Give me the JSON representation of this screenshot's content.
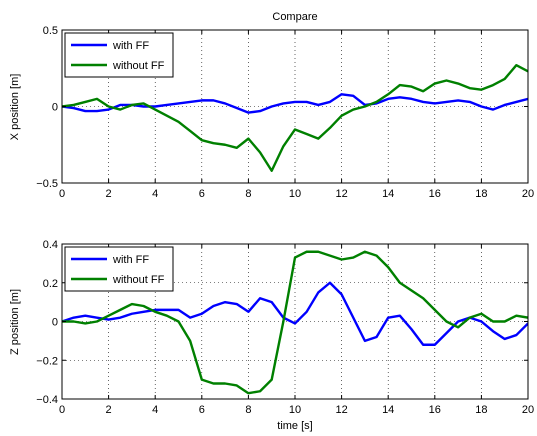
{
  "chart_data": [
    {
      "type": "line",
      "title": "Compare",
      "xlabel": "",
      "ylabel": "X position [m]",
      "xlim": [
        0,
        20
      ],
      "ylim": [
        -0.5,
        0.5
      ],
      "xticks": [
        0,
        2,
        4,
        6,
        8,
        10,
        12,
        14,
        16,
        18,
        20
      ],
      "yticks": [
        -0.5,
        0,
        0.5
      ],
      "ytick_labels": [
        "−0.5",
        "0",
        "0.5"
      ],
      "grid": true,
      "legend_position": "top-left",
      "series": [
        {
          "name": "with FF",
          "color": "#0000ff",
          "x": [
            0,
            0.5,
            1,
            1.5,
            2,
            2.5,
            3,
            3.5,
            4,
            4.5,
            5,
            5.5,
            6,
            6.5,
            7,
            7.5,
            8,
            8.5,
            9,
            9.5,
            10,
            10.5,
            11,
            11.5,
            12,
            12.5,
            13,
            13.5,
            14,
            14.5,
            15,
            15.5,
            16,
            16.5,
            17,
            17.5,
            18,
            18.5,
            19,
            19.5,
            20
          ],
          "y": [
            0,
            -0.01,
            -0.03,
            -0.03,
            -0.02,
            0.01,
            0.01,
            0.0,
            0.0,
            0.01,
            0.02,
            0.03,
            0.04,
            0.04,
            0.02,
            -0.01,
            -0.04,
            -0.03,
            0.0,
            0.02,
            0.03,
            0.03,
            0.01,
            0.03,
            0.08,
            0.07,
            0.01,
            0.02,
            0.05,
            0.06,
            0.05,
            0.03,
            0.02,
            0.03,
            0.04,
            0.03,
            0.0,
            -0.02,
            0.01,
            0.03,
            0.05
          ]
        },
        {
          "name": "without FF",
          "color": "#008000",
          "x": [
            0,
            0.5,
            1,
            1.5,
            2,
            2.5,
            3,
            3.5,
            4,
            4.5,
            5,
            5.5,
            6,
            6.5,
            7,
            7.5,
            8,
            8.5,
            9,
            9.5,
            10,
            10.5,
            11,
            11.5,
            12,
            12.5,
            13,
            13.5,
            14,
            14.5,
            15,
            15.5,
            16,
            16.5,
            17,
            17.5,
            18,
            18.5,
            19,
            19.5,
            20
          ],
          "y": [
            0,
            0.01,
            0.03,
            0.05,
            0.0,
            -0.02,
            0.01,
            0.02,
            -0.02,
            -0.06,
            -0.1,
            -0.16,
            -0.22,
            -0.24,
            -0.25,
            -0.27,
            -0.21,
            -0.3,
            -0.42,
            -0.26,
            -0.15,
            -0.18,
            -0.21,
            -0.14,
            -0.06,
            -0.02,
            0.0,
            0.03,
            0.08,
            0.14,
            0.13,
            0.1,
            0.15,
            0.17,
            0.15,
            0.12,
            0.11,
            0.14,
            0.18,
            0.27,
            0.23
          ]
        }
      ]
    },
    {
      "type": "line",
      "title": "",
      "xlabel": "time [s]",
      "ylabel": "Z position [m]",
      "xlim": [
        0,
        20
      ],
      "ylim": [
        -0.4,
        0.4
      ],
      "xticks": [
        0,
        2,
        4,
        6,
        8,
        10,
        12,
        14,
        16,
        18,
        20
      ],
      "yticks": [
        -0.4,
        -0.2,
        0,
        0.2,
        0.4
      ],
      "ytick_labels": [
        "−0.4",
        "−0.2",
        "0",
        "0.2",
        "0.4"
      ],
      "grid": true,
      "legend_position": "top-left",
      "series": [
        {
          "name": "with FF",
          "color": "#0000ff",
          "x": [
            0,
            0.5,
            1,
            1.5,
            2,
            2.5,
            3,
            3.5,
            4,
            4.5,
            5,
            5.5,
            6,
            6.5,
            7,
            7.5,
            8,
            8.5,
            9,
            9.5,
            10,
            10.5,
            11,
            11.5,
            12,
            12.5,
            13,
            13.5,
            14,
            14.5,
            15,
            15.5,
            16,
            16.5,
            17,
            17.5,
            18,
            18.5,
            19,
            19.5,
            20
          ],
          "y": [
            0,
            0.02,
            0.03,
            0.02,
            0.01,
            0.02,
            0.04,
            0.05,
            0.06,
            0.06,
            0.06,
            0.02,
            0.04,
            0.08,
            0.1,
            0.09,
            0.05,
            0.12,
            0.1,
            0.02,
            -0.01,
            0.05,
            0.15,
            0.2,
            0.14,
            0.02,
            -0.1,
            -0.08,
            0.02,
            0.03,
            -0.04,
            -0.12,
            -0.12,
            -0.06,
            0.0,
            0.02,
            0.0,
            -0.05,
            -0.09,
            -0.07,
            -0.01
          ]
        },
        {
          "name": "without FF",
          "color": "#008000",
          "x": [
            0,
            0.5,
            1,
            1.5,
            2,
            2.5,
            3,
            3.5,
            4,
            4.5,
            5,
            5.5,
            6,
            6.5,
            7,
            7.5,
            8,
            8.5,
            9,
            9.5,
            10,
            10.5,
            11,
            11.5,
            12,
            12.5,
            13,
            13.5,
            14,
            14.5,
            15,
            15.5,
            16,
            16.5,
            17,
            17.5,
            18,
            18.5,
            19,
            19.5,
            20
          ],
          "y": [
            0,
            0.0,
            -0.01,
            0.0,
            0.03,
            0.06,
            0.09,
            0.08,
            0.05,
            0.03,
            0.0,
            -0.1,
            -0.3,
            -0.32,
            -0.32,
            -0.33,
            -0.37,
            -0.36,
            -0.3,
            0.0,
            0.33,
            0.36,
            0.36,
            0.34,
            0.32,
            0.33,
            0.36,
            0.34,
            0.28,
            0.2,
            0.16,
            0.12,
            0.06,
            0.0,
            -0.03,
            0.02,
            0.04,
            0.0,
            0.0,
            0.03,
            0.02
          ]
        }
      ]
    }
  ]
}
